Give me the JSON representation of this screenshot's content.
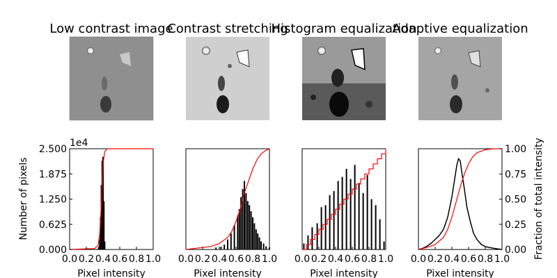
{
  "figure": {
    "panels": [
      {
        "title": "Low contrast image",
        "image_icon": "moon-surface-low-contrast-image"
      },
      {
        "title": "Contrast stretching",
        "image_icon": "moon-surface-contrast-stretched-image"
      },
      {
        "title": "Histogram equalization",
        "image_icon": "moon-surface-histogram-equalized-image"
      },
      {
        "title": "Adaptive equalization",
        "image_icon": "moon-surface-adaptive-equalized-image"
      }
    ],
    "ylabel_left": "Number of pixels",
    "ylabel_right": "Fraction of total intensity",
    "offset_label": "1e4",
    "xlabel": "Pixel intensity"
  },
  "chart_data": [
    {
      "type": "histogram",
      "title": "Low contrast image",
      "xlabel": "Pixel intensity",
      "ylabel": "Number of pixels",
      "xlim": [
        0,
        1
      ],
      "ylim": [
        0,
        25000
      ],
      "x_tick_labels": [
        "0.0",
        "0.2",
        "0.4",
        "0.6",
        "0.8",
        "1.0"
      ],
      "y_tick_labels": [
        "0.000",
        "0.625",
        "1.250",
        "1.875",
        "2.500"
      ],
      "y_offset": "1e4",
      "series": [
        {
          "kind": "histogram",
          "x": [
            0.34,
            0.35,
            0.36,
            0.37,
            0.38,
            0.39,
            0.4,
            0.41,
            0.42
          ],
          "values": [
            200,
            700,
            2500,
            8000,
            16000,
            22000,
            23000,
            12000,
            2000
          ],
          "color": "#000000"
        },
        {
          "kind": "cdf",
          "x": [
            0.0,
            0.3,
            0.34,
            0.36,
            0.38,
            0.4,
            0.42,
            0.45,
            1.0
          ],
          "values": [
            0,
            0.01,
            0.04,
            0.15,
            0.45,
            0.85,
            0.97,
            1.0,
            1.0
          ],
          "color": "#ff0000"
        }
      ]
    },
    {
      "type": "histogram",
      "title": "Contrast stretching",
      "xlabel": "Pixel intensity",
      "xlim": [
        0,
        1
      ],
      "ylim": [
        0,
        25000
      ],
      "x_tick_labels": [
        "0.0",
        "0.2",
        "0.4",
        "0.6",
        "0.8",
        "1.0"
      ],
      "series": [
        {
          "kind": "histogram",
          "x": [
            0.36,
            0.42,
            0.46,
            0.5,
            0.54,
            0.58,
            0.62,
            0.64,
            0.66,
            0.68,
            0.7,
            0.72,
            0.74,
            0.76,
            0.78,
            0.8,
            0.82,
            0.84,
            0.86,
            0.88,
            0.9,
            0.93,
            0.96,
            1.0
          ],
          "values": [
            500,
            700,
            1200,
            2500,
            4000,
            6000,
            8500,
            10000,
            13000,
            15000,
            17000,
            14000,
            12000,
            11000,
            9500,
            8000,
            6500,
            5000,
            4000,
            3000,
            2000,
            1500,
            800,
            500
          ],
          "color": "#000000"
        },
        {
          "kind": "cdf",
          "x": [
            0.0,
            0.3,
            0.4,
            0.5,
            0.55,
            0.6,
            0.65,
            0.7,
            0.75,
            0.8,
            0.85,
            0.9,
            0.95,
            1.0
          ],
          "values": [
            0,
            0.03,
            0.06,
            0.12,
            0.18,
            0.28,
            0.4,
            0.56,
            0.68,
            0.8,
            0.89,
            0.95,
            0.98,
            1.0
          ],
          "color": "#ff0000"
        }
      ]
    },
    {
      "type": "histogram",
      "title": "Histogram equalization",
      "xlabel": "Pixel intensity",
      "xlim": [
        0,
        1
      ],
      "ylim": [
        0,
        25000
      ],
      "x_tick_labels": [
        "0.0",
        "0.2",
        "0.4",
        "0.6",
        "0.8",
        "1.0"
      ],
      "series": [
        {
          "kind": "histogram",
          "x": [
            0.02,
            0.07,
            0.12,
            0.18,
            0.23,
            0.28,
            0.33,
            0.38,
            0.43,
            0.48,
            0.53,
            0.58,
            0.63,
            0.68,
            0.73,
            0.78,
            0.83,
            0.88,
            0.93,
            0.98
          ],
          "values": [
            1500,
            3500,
            5500,
            6500,
            10500,
            11000,
            13500,
            14500,
            17000,
            18000,
            20000,
            17500,
            21000,
            16500,
            14000,
            18500,
            12500,
            11000,
            7500,
            2000
          ],
          "color": "#000000"
        },
        {
          "kind": "cdf",
          "step": true,
          "x": [
            0.0,
            0.05,
            0.1,
            0.15,
            0.2,
            0.25,
            0.3,
            0.35,
            0.4,
            0.45,
            0.5,
            0.55,
            0.6,
            0.65,
            0.7,
            0.75,
            0.8,
            0.85,
            0.9,
            0.95,
            1.0
          ],
          "values": [
            0,
            0.05,
            0.1,
            0.15,
            0.2,
            0.25,
            0.3,
            0.35,
            0.4,
            0.45,
            0.5,
            0.55,
            0.6,
            0.65,
            0.7,
            0.75,
            0.8,
            0.85,
            0.9,
            0.95,
            1.0
          ],
          "color": "#ff0000"
        }
      ]
    },
    {
      "type": "histogram",
      "title": "Adaptive equalization",
      "xlabel": "Pixel intensity",
      "ylabel": "Fraction of total intensity",
      "xlim": [
        0,
        1
      ],
      "ylim": [
        0,
        1
      ],
      "x_tick_labels": [
        "0.0",
        "0.2",
        "0.4",
        "0.6",
        "0.8",
        "1.0"
      ],
      "y_tick_labels": [
        "0.00",
        "0.25",
        "0.50",
        "0.75",
        "1.00"
      ],
      "series": [
        {
          "kind": "histogram",
          "x": [
            0.0,
            0.05,
            0.1,
            0.15,
            0.2,
            0.25,
            0.3,
            0.35,
            0.4,
            0.43,
            0.46,
            0.48,
            0.5,
            0.52,
            0.55,
            0.58,
            0.62,
            0.66,
            0.7,
            0.75,
            0.8,
            0.9,
            1.0
          ],
          "values": [
            0,
            300,
            800,
            1500,
            2500,
            3500,
            5000,
            8000,
            13000,
            17000,
            21000,
            22500,
            22000,
            19000,
            15000,
            10500,
            7000,
            4000,
            2500,
            1300,
            700,
            300,
            0
          ],
          "color": "#000000"
        },
        {
          "kind": "cdf",
          "x": [
            0.0,
            0.1,
            0.2,
            0.3,
            0.35,
            0.4,
            0.45,
            0.5,
            0.55,
            0.6,
            0.65,
            0.7,
            0.8,
            0.9,
            1.0
          ],
          "values": [
            0,
            0.02,
            0.05,
            0.12,
            0.2,
            0.32,
            0.47,
            0.62,
            0.75,
            0.85,
            0.92,
            0.96,
            0.99,
            1.0,
            1.0
          ],
          "color": "#ff0000"
        }
      ]
    }
  ]
}
